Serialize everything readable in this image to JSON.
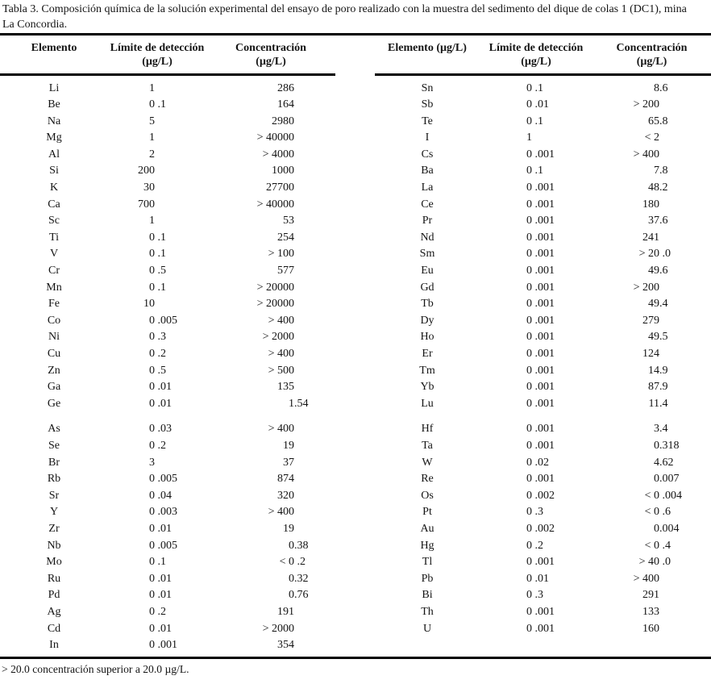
{
  "caption": {
    "line1": "Tabla 3. Composición química de la solución experimental del ensayo de poro realizado con la muestra del sedimento del dique de colas 1 (DC1), mina",
    "line2": "La Concordia."
  },
  "footnote": "> 20.0 concentración superior a 20.0 µg/L.",
  "tables": [
    {
      "id": "left",
      "headers": {
        "element": "Elemento",
        "limit_line1": "Límite de detección",
        "limit_line2": "(µg/L)",
        "conc_line1": "Concentración",
        "conc_line2": "(µg/L)"
      },
      "groups": [
        {
          "rows": [
            {
              "el": "Li",
              "lim": "1",
              "conc": "286"
            },
            {
              "el": "Be",
              "lim": "0 .1",
              "conc": "164"
            },
            {
              "el": "Na",
              "lim": "5",
              "conc": "2980"
            },
            {
              "el": "Mg",
              "lim": "1",
              "conc": "> 40000"
            },
            {
              "el": "Al",
              "lim": "2",
              "conc": "> 4000"
            },
            {
              "el": "Si",
              "lim": "200",
              "conc": "1000"
            },
            {
              "el": "K",
              "lim": "30",
              "conc": "27700"
            },
            {
              "el": "Ca",
              "lim": "700",
              "conc": "> 40000"
            },
            {
              "el": "Sc",
              "lim": "1",
              "conc": "53"
            },
            {
              "el": "Ti",
              "lim": "0 .1",
              "conc": "254"
            },
            {
              "el": "V",
              "lim": "0 .1",
              "conc": "> 100"
            },
            {
              "el": "Cr",
              "lim": "0 .5",
              "conc": "577"
            },
            {
              "el": "Mn",
              "lim": "0 .1",
              "conc": "> 20000"
            },
            {
              "el": "Fe",
              "lim": "10",
              "conc": "> 20000"
            },
            {
              "el": "Co",
              "lim": "0 .005",
              "conc": "> 400"
            },
            {
              "el": "Ni",
              "lim": "0 .3",
              "conc": "> 2000"
            },
            {
              "el": "Cu",
              "lim": "0 .2",
              "conc": "> 400"
            },
            {
              "el": "Zn",
              "lim": "0 .5",
              "conc": "> 500"
            },
            {
              "el": "Ga",
              "lim": "0 .01",
              "conc": "135"
            },
            {
              "el": "Ge",
              "lim": "0 .01",
              "conc": "1.54"
            }
          ]
        },
        {
          "rows": [
            {
              "el": "As",
              "lim": "0 .03",
              "conc": "> 400"
            },
            {
              "el": "Se",
              "lim": "0 .2",
              "conc": "19"
            },
            {
              "el": "Br",
              "lim": "3",
              "conc": "37"
            },
            {
              "el": "Rb",
              "lim": "0 .005",
              "conc": "874"
            },
            {
              "el": "Sr",
              "lim": "0 .04",
              "conc": "320"
            },
            {
              "el": "Y",
              "lim": "0 .003",
              "conc": "> 400"
            },
            {
              "el": "Zr",
              "lim": "0 .01",
              "conc": "19"
            },
            {
              "el": "Nb",
              "lim": "0 .005",
              "conc": "0.38"
            },
            {
              "el": "Mo",
              "lim": "0 .1",
              "conc": "< 0 .2"
            },
            {
              "el": "Ru",
              "lim": "0 .01",
              "conc": "0.32"
            },
            {
              "el": "Pd",
              "lim": "0 .01",
              "conc": "0.76"
            },
            {
              "el": "Ag",
              "lim": "0 .2",
              "conc": "191"
            },
            {
              "el": "Cd",
              "lim": "0 .01",
              "conc": "> 2000"
            },
            {
              "el": "In",
              "lim": "0 .001",
              "conc": "354"
            }
          ]
        }
      ]
    },
    {
      "id": "right",
      "headers": {
        "element": "Elemento (µg/L)",
        "limit_line1": "Límite de detección",
        "limit_line2": "(µg/L)",
        "conc_line1": "Concentración",
        "conc_line2": "(µg/L)"
      },
      "groups": [
        {
          "rows": [
            {
              "el": "Sn",
              "lim": "0 .1",
              "conc": "8.6"
            },
            {
              "el": "Sb",
              "lim": "0 .01",
              "conc": "> 200"
            },
            {
              "el": "Te",
              "lim": "0 .1",
              "conc": "65.8"
            },
            {
              "el": "I",
              "lim": "1",
              "conc": "< 2"
            },
            {
              "el": "Cs",
              "lim": "0 .001",
              "conc": "> 400"
            },
            {
              "el": "Ba",
              "lim": "0 .1",
              "conc": "7.8"
            },
            {
              "el": "La",
              "lim": "0 .001",
              "conc": "48.2"
            },
            {
              "el": "Ce",
              "lim": "0 .001",
              "conc": "180"
            },
            {
              "el": "Pr",
              "lim": "0 .001",
              "conc": "37.6"
            },
            {
              "el": "Nd",
              "lim": "0 .001",
              "conc": "241"
            },
            {
              "el": "Sm",
              "lim": "0 .001",
              "conc": "> 20 .0"
            },
            {
              "el": "Eu",
              "lim": "0 .001",
              "conc": "49.6"
            },
            {
              "el": "Gd",
              "lim": "0 .001",
              "conc": "> 200"
            },
            {
              "el": "Tb",
              "lim": "0 .001",
              "conc": "49.4"
            },
            {
              "el": "Dy",
              "lim": "0 .001",
              "conc": "279"
            },
            {
              "el": "Ho",
              "lim": "0 .001",
              "conc": "49.5"
            },
            {
              "el": "Er",
              "lim": "0 .001",
              "conc": "124"
            },
            {
              "el": "Tm",
              "lim": "0 .001",
              "conc": "14.9"
            },
            {
              "el": "Yb",
              "lim": "0 .001",
              "conc": "87.9"
            },
            {
              "el": "Lu",
              "lim": "0 .001",
              "conc": "11.4"
            }
          ]
        },
        {
          "rows": [
            {
              "el": "Hf",
              "lim": "0 .001",
              "conc": "3.4"
            },
            {
              "el": "Ta",
              "lim": "0 .001",
              "conc": "0.318"
            },
            {
              "el": "W",
              "lim": "0 .02",
              "conc": "4.62"
            },
            {
              "el": "Re",
              "lim": "0 .001",
              "conc": "0.007"
            },
            {
              "el": "Os",
              "lim": "0 .002",
              "conc": "< 0 .004"
            },
            {
              "el": "Pt",
              "lim": "0 .3",
              "conc": "< 0 .6"
            },
            {
              "el": "Au",
              "lim": "0 .002",
              "conc": "0.004"
            },
            {
              "el": "Hg",
              "lim": "0 .2",
              "conc": "< 0 .4"
            },
            {
              "el": "Tl",
              "lim": "0 .001",
              "conc": "> 40 .0"
            },
            {
              "el": "Pb",
              "lim": "0 .01",
              "conc": "> 400"
            },
            {
              "el": "Bi",
              "lim": "0 .3",
              "conc": "291"
            },
            {
              "el": "Th",
              "lim": "0 .001",
              "conc": "133"
            },
            {
              "el": "U",
              "lim": "0 .001",
              "conc": "160"
            }
          ]
        }
      ]
    }
  ]
}
